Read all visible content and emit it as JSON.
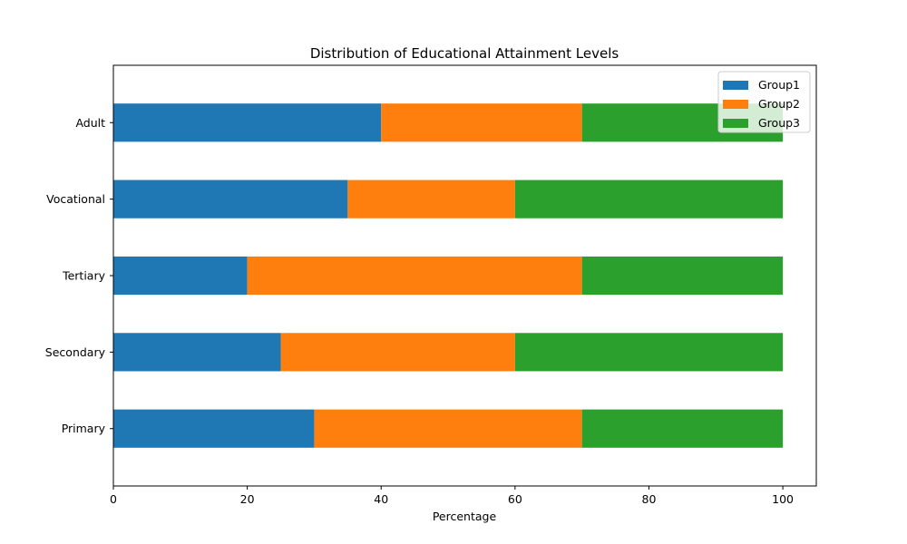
{
  "chart_data": {
    "type": "bar",
    "orientation": "horizontal",
    "stacked": true,
    "title": "Distribution of Educational Attainment Levels",
    "xlabel": "Percentage",
    "ylabel": "",
    "categories": [
      "Primary",
      "Secondary",
      "Tertiary",
      "Vocational",
      "Adult"
    ],
    "series": [
      {
        "name": "Group1",
        "values": [
          30,
          25,
          20,
          35,
          40
        ],
        "color": "#1f77b4"
      },
      {
        "name": "Group2",
        "values": [
          40,
          35,
          50,
          25,
          30
        ],
        "color": "#ff7f0e"
      },
      {
        "name": "Group3",
        "values": [
          30,
          40,
          30,
          40,
          30
        ],
        "color": "#2ca02c"
      }
    ],
    "xlim": [
      0,
      105
    ],
    "xticks": [
      0,
      20,
      40,
      60,
      80,
      100
    ],
    "grid": false,
    "legend_position": "top-right"
  }
}
